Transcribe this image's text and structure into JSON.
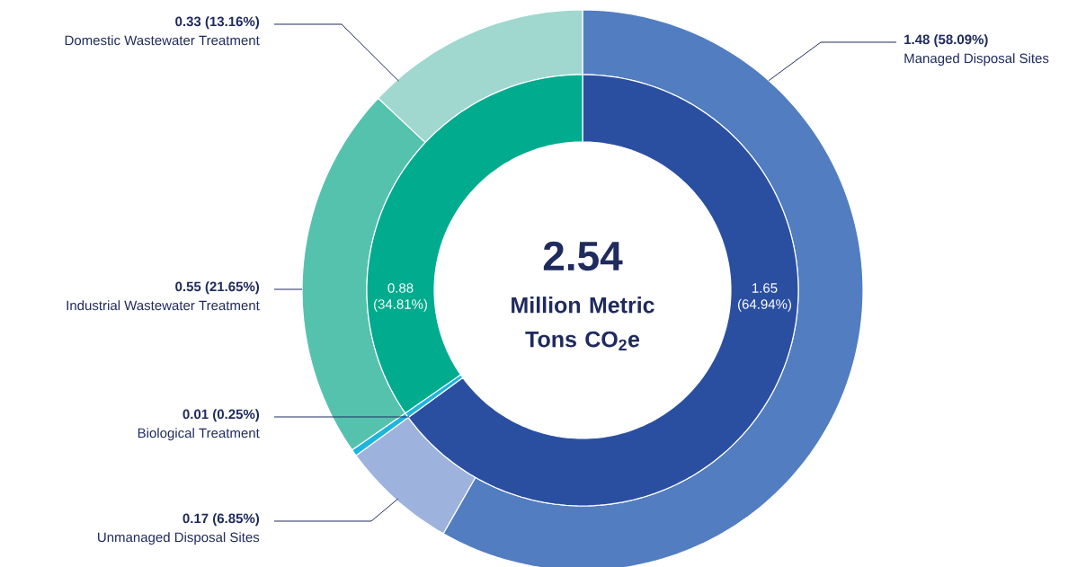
{
  "chart_data": [
    {
      "type": "donut",
      "categories": [
        "Managed Disposal Sites",
        "Unmanaged Disposal Sites",
        "Biological Treatment",
        "Industrial Wastewater Treatment",
        "Domestic Wastewater Treatment"
      ],
      "values": [
        1.48,
        0.17,
        0.01,
        0.55,
        0.33
      ],
      "colors": [
        "#527dc0",
        "#9db3dd",
        "#1eb4e0",
        "#55c2ad",
        "#a0d8cf"
      ],
      "value_labels": [
        "1.48 (58.09%)",
        "0.17 (6.85%)",
        "0.01 (0.25%)",
        "0.55 (21.65%)",
        "0.33 (13.16%)"
      ]
    },
    {
      "type": "donut",
      "title": "2.54",
      "subtitle": "Million Metric Tons CO$_{2}$e",
      "categories": [
        null,
        null,
        null
      ],
      "values": [
        1.65,
        0.01,
        0.88
      ],
      "colors": [
        "#2b4fa0",
        "#1eb4e0",
        "#00ab8e"
      ],
      "value_labels": [
        "1.65 (64.94%)",
        null,
        "0.88 (34.81%)"
      ]
    }
  ]
}
